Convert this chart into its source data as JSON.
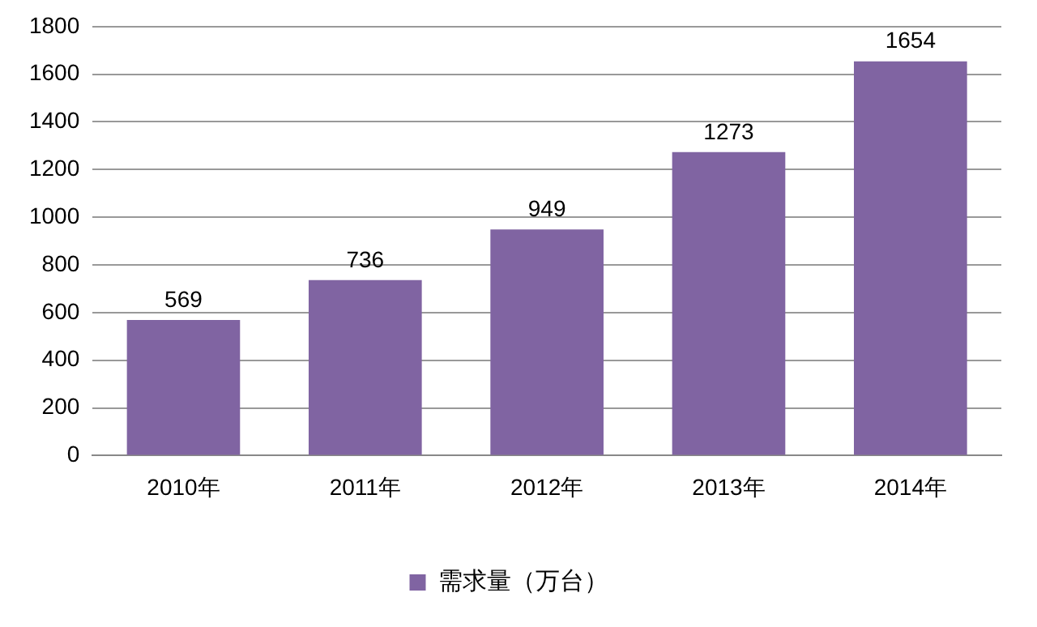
{
  "chart_data": {
    "type": "bar",
    "categories": [
      "2010年",
      "2011年",
      "2012年",
      "2013年",
      "2014年"
    ],
    "series": [
      {
        "name": "需求量（万台）",
        "color": "#8064a2",
        "values": [
          569,
          736,
          949,
          1273,
          1654
        ]
      }
    ],
    "ylim": [
      0,
      1800
    ],
    "yticks": [
      0,
      200,
      400,
      600,
      800,
      1000,
      1200,
      1400,
      1600,
      1800
    ],
    "grid": "y",
    "legend": "bottom",
    "data_labels": true
  }
}
